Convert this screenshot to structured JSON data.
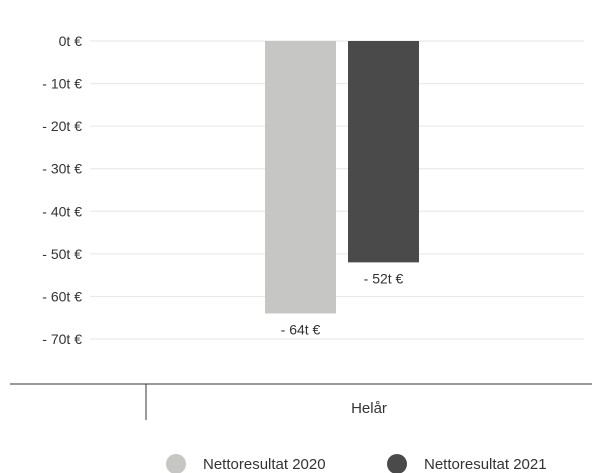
{
  "chart_data": {
    "type": "bar",
    "categories": [
      "Helår"
    ],
    "series": [
      {
        "name": "Nettoresultat 2020",
        "values": [
          -64
        ],
        "color": "#c6c6c4",
        "label": "- 64t €"
      },
      {
        "name": "Nettoresultat 2021",
        "values": [
          -52
        ],
        "color": "#4a4a4a",
        "label": "- 52t €"
      }
    ],
    "y_ticks": [
      {
        "value": 0,
        "label": "0t €"
      },
      {
        "value": -10,
        "label": "- 10t €"
      },
      {
        "value": -20,
        "label": "- 20t €"
      },
      {
        "value": -30,
        "label": "- 30t €"
      },
      {
        "value": -40,
        "label": "- 40t €"
      },
      {
        "value": -50,
        "label": "- 50t €"
      },
      {
        "value": -60,
        "label": "- 60t €"
      },
      {
        "value": -70,
        "label": "- 70t €"
      }
    ],
    "ylim": [
      -70,
      0
    ],
    "grid": true,
    "legend_position": "bottom-right",
    "title": "",
    "xlabel": "",
    "ylabel": ""
  }
}
